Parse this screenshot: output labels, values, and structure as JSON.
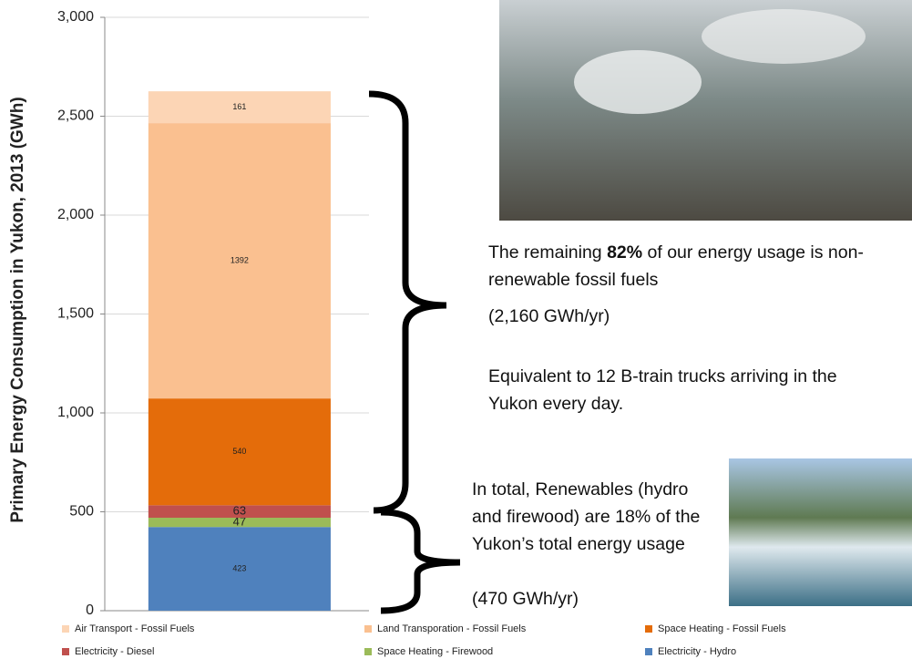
{
  "chart_data": {
    "type": "stacked_bar",
    "y_label": "Primary Energy Consumption in Yukon, 2013  (GWh)",
    "categories": [
      null
    ],
    "series": [
      {
        "name": "Air Transport - Fossil Fuels",
        "color": "#fcd5b5",
        "values": [
          161
        ]
      },
      {
        "name": "Land Transporation - Fossil Fuels",
        "color": "#fac090",
        "values": [
          1392
        ]
      },
      {
        "name": "Space Heating - Fossil Fuels",
        "color": "#e46c0a",
        "values": [
          540
        ]
      },
      {
        "name": "Electricity - Diesel",
        "color": "#c0504d",
        "values": [
          63
        ]
      },
      {
        "name": "Space Heating - Firewood",
        "color": "#9bbb59",
        "values": [
          47
        ]
      },
      {
        "name": "Electricity - Hydro",
        "color": "#4f81bd",
        "values": [
          423
        ]
      }
    ],
    "ylim": [
      0,
      3000
    ],
    "yticks": [
      0,
      500,
      {
        "value": 1000,
        "label": "1,000"
      },
      {
        "value": 1500,
        "label": "1,500"
      },
      {
        "value": 2000,
        "label": "2,000"
      },
      {
        "value": 2500,
        "label": "2,500"
      },
      {
        "value": 3000,
        "label": "3,000"
      }
    ],
    "grid": true,
    "annotations": {
      "fossil_intro": "The remaining ",
      "fossil_share": "82%",
      "fossil_rest": " of our energy usage is non-renewable fossil fuels",
      "fossil_total": "(2,160 GWh/yr)",
      "trucks": "Equivalent to 12 B-train trucks arriving in the Yukon every day.",
      "renewables": "In total, Renewables (hydro and firewood) are 18% of the Yukon’s total energy usage",
      "renewables_total": "(470 GWh/yr)"
    }
  }
}
